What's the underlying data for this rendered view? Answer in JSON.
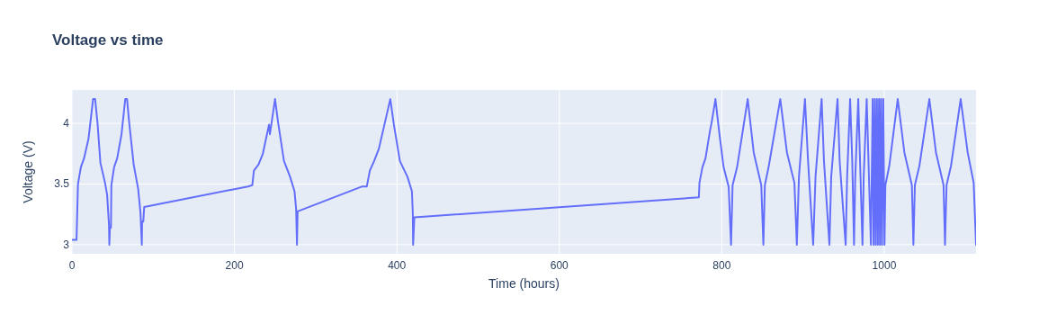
{
  "chart_data": {
    "type": "line",
    "title": "Voltage vs time",
    "xlabel": "Time (hours)",
    "ylabel": "Voltage (V)",
    "xlim": [
      0,
      1113
    ],
    "ylim": [
      2.925,
      4.275
    ],
    "xticks": [
      0,
      200,
      400,
      600,
      800,
      1000
    ],
    "yticks": [
      3,
      3.5,
      4
    ],
    "grid": true,
    "series": [
      {
        "color": "#636efa",
        "x": [
          0,
          5.6,
          7.4,
          11,
          14.8,
          20.4,
          26,
          28.5,
          31.5,
          35,
          40.7,
          43.3,
          45.6,
          46,
          46.7,
          48,
          48.5,
          51.9,
          55.6,
          61,
          65.6,
          67.8,
          70.4,
          76,
          81.5,
          84.4,
          86,
          86.3,
          87.8,
          88.9,
          216.7,
          222,
          224,
          229.6,
          235,
          242.6,
          243.7,
          250,
          253.7,
          261,
          268.5,
          274,
          276,
          277,
          277.8,
          357.4,
          363,
          366.7,
          372,
          377.8,
          391.9,
          396.3,
          403.7,
          413,
          418.5,
          419.6,
          420,
          421.5,
          771.8,
          772.5,
          776.2,
          779.9,
          785.5,
          787.3,
          792.2,
          796.6,
          802.2,
          808.5,
          811.4,
          813.3,
          818.9,
          831.9,
          839.3,
          848.6,
          851.2,
          853,
          857.9,
          872,
          880.2,
          889.4,
          892.4,
          895,
          902.4,
          906.2,
          912.5,
          915.4,
          922.9,
          925.8,
          932.5,
          934.7,
          942.5,
          945.1,
          952.5,
          954.3,
          958,
          960.6,
          962.8,
          964.3,
          968,
          970.2,
          973.2,
          974.7,
          978.4,
          980.6,
          983.6,
          985.8,
          986.9,
          988.4,
          989.5,
          991,
          992.1,
          993.6,
          994.7,
          996.1,
          997.3,
          998.8,
          1000.3,
          1001.4,
          1006.2,
          1016.6,
          1024.8,
          1034,
          1035.9,
          1037.7,
          1043.3,
          1055.5,
          1063.7,
          1073,
          1074.8,
          1076.7,
          1082.2,
          1094.1,
          1102.7,
          1110.1,
          1113
        ],
        "values": [
          3.04,
          3.04,
          3.5,
          3.64,
          3.71,
          3.875,
          4.2,
          4.2,
          4.0,
          3.675,
          3.51,
          3.41,
          3.16,
          3.0,
          3.14,
          3.14,
          3.49,
          3.64,
          3.71,
          3.91,
          4.2,
          4.2,
          4.01,
          3.66,
          3.46,
          3.26,
          3.0,
          3.19,
          3.19,
          3.31,
          3.48,
          3.49,
          3.61,
          3.66,
          3.75,
          3.99,
          3.91,
          4.2,
          4.01,
          3.69,
          3.56,
          3.44,
          3.29,
          3.0,
          3.275,
          3.48,
          3.48,
          3.61,
          3.69,
          3.79,
          4.2,
          3.99,
          3.69,
          3.56,
          3.44,
          3.26,
          3.0,
          3.225,
          3.39,
          3.51,
          3.64,
          3.71,
          3.94,
          4.0,
          4.2,
          3.94,
          3.64,
          3.475,
          3.0,
          3.49,
          3.64,
          4.2,
          3.76,
          3.49,
          3.0,
          3.49,
          3.65,
          4.2,
          3.76,
          3.51,
          3.0,
          3.56,
          4.2,
          3.69,
          3.0,
          3.56,
          4.2,
          3.69,
          3.0,
          3.56,
          4.2,
          3.69,
          3.0,
          3.56,
          4.2,
          3.69,
          3.0,
          3.56,
          4.2,
          3.69,
          3.0,
          3.56,
          4.2,
          3.69,
          3.0,
          4.2,
          3.0,
          4.2,
          3.0,
          4.2,
          3.0,
          4.2,
          3.0,
          4.2,
          3.0,
          4.2,
          3.0,
          3.49,
          3.65,
          4.2,
          3.76,
          3.49,
          3.0,
          3.49,
          3.65,
          4.2,
          3.76,
          3.49,
          3.0,
          3.49,
          3.65,
          4.2,
          3.76,
          3.51,
          3.0
        ]
      }
    ]
  }
}
